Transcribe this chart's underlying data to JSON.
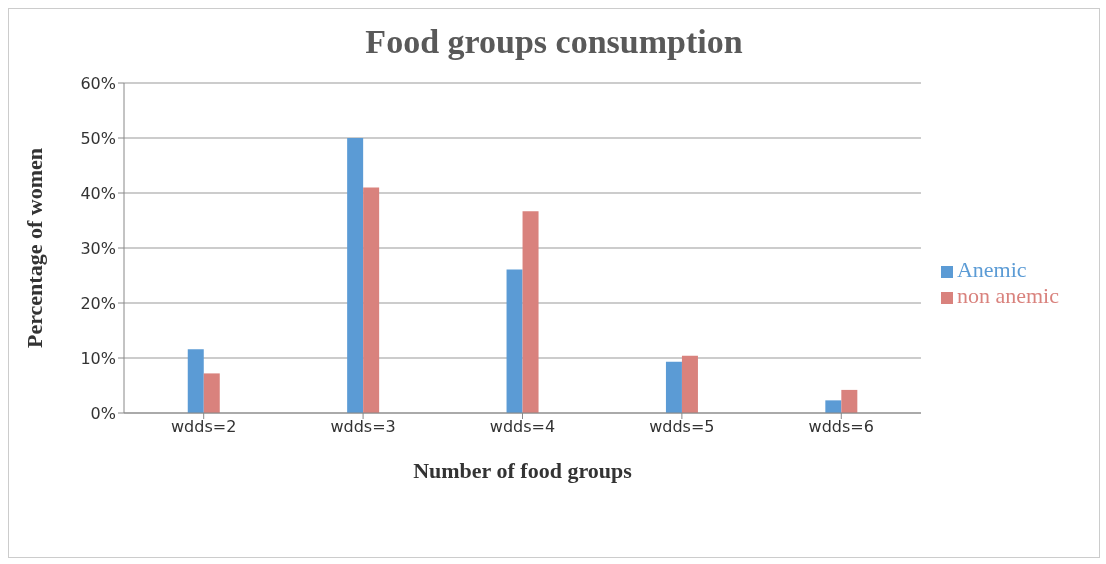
{
  "chart_data": {
    "type": "bar",
    "title": "Food groups consumption",
    "xlabel": "Number of food groups",
    "ylabel": "Percentage of women",
    "categories": [
      "wdds=2",
      "wdds=3",
      "wdds=4",
      "wdds=5",
      "wdds=6"
    ],
    "series": [
      {
        "name": "Anemic",
        "color": "#5b9bd5",
        "values": [
          0.116,
          0.5,
          0.261,
          0.093,
          0.023
        ]
      },
      {
        "name": "non anemic",
        "color": "#d9827d",
        "values": [
          0.072,
          0.41,
          0.367,
          0.104,
          0.042
        ]
      }
    ],
    "ylim": [
      0,
      0.6
    ],
    "yticks": [
      {
        "value": 0,
        "label": "0%"
      },
      {
        "value": 0.1,
        "label": "10%"
      },
      {
        "value": 0.2,
        "label": "20%"
      },
      {
        "value": 0.3,
        "label": "30%"
      },
      {
        "value": 0.4,
        "label": "40%"
      },
      {
        "value": 0.5,
        "label": "50%"
      },
      {
        "value": 0.6,
        "label": "60%"
      }
    ],
    "grid": "y",
    "legend": "right"
  }
}
